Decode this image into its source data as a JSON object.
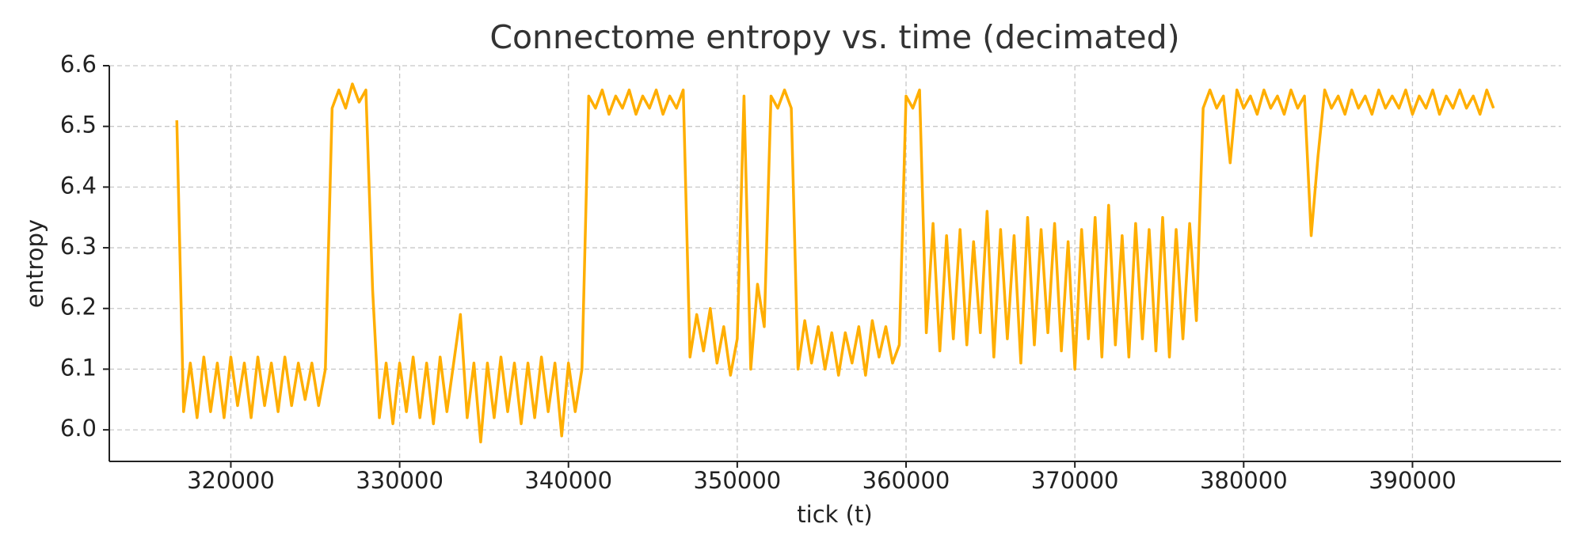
{
  "chart_data": {
    "type": "line",
    "title": "Connectome entropy vs. time (decimated)",
    "x_label": "tick (t)",
    "y_label": "entropy",
    "color": "#ffae00",
    "grid": true,
    "xlim": [
      312800,
      398800
    ],
    "ylim": [
      5.948,
      6.6
    ],
    "xticks": [
      320000,
      330000,
      340000,
      350000,
      360000,
      370000,
      380000,
      390000
    ],
    "yticks": [
      {
        "value": 6,
        "label": "6.0"
      },
      6.1,
      6.2,
      6.3,
      6.4,
      6.5,
      6.6
    ],
    "x": [
      316800,
      317200,
      317600,
      318000,
      318400,
      318800,
      319200,
      319600,
      320000,
      320400,
      320800,
      321200,
      321600,
      322000,
      322400,
      322800,
      323200,
      323600,
      324000,
      324400,
      324800,
      325200,
      325600,
      326000,
      326400,
      326800,
      327200,
      327600,
      328000,
      328400,
      328800,
      329200,
      329600,
      330000,
      330400,
      330800,
      331200,
      331600,
      332000,
      332400,
      332800,
      333200,
      333600,
      334000,
      334400,
      334800,
      335200,
      335600,
      336000,
      336400,
      336800,
      337200,
      337600,
      338000,
      338400,
      338800,
      339200,
      339600,
      340000,
      340400,
      340800,
      341200,
      341600,
      342000,
      342400,
      342800,
      343200,
      343600,
      344000,
      344400,
      344800,
      345200,
      345600,
      346000,
      346400,
      346800,
      347200,
      347600,
      348000,
      348400,
      348800,
      349200,
      349600,
      350000,
      350400,
      350800,
      351200,
      351600,
      352000,
      352400,
      352800,
      353200,
      353600,
      354000,
      354400,
      354800,
      355200,
      355600,
      356000,
      356400,
      356800,
      357200,
      357600,
      358000,
      358400,
      358800,
      359200,
      359600,
      360000,
      360400,
      360800,
      361200,
      361600,
      362000,
      362400,
      362800,
      363200,
      363600,
      364000,
      364400,
      364800,
      365200,
      365600,
      366000,
      366400,
      366800,
      367200,
      367600,
      368000,
      368400,
      368800,
      369200,
      369600,
      370000,
      370400,
      370800,
      371200,
      371600,
      372000,
      372400,
      372800,
      373200,
      373600,
      374000,
      374400,
      374800,
      375200,
      375600,
      376000,
      376400,
      376800,
      377200,
      377600,
      378000,
      378400,
      378800,
      379200,
      379600,
      380000,
      380400,
      380800,
      381200,
      381600,
      382000,
      382400,
      382800,
      383200,
      383600,
      384000,
      384400,
      384800,
      385200,
      385600,
      386000,
      386400,
      386800,
      387200,
      387600,
      388000,
      388400,
      388800,
      389200,
      389600,
      390000,
      390400,
      390800,
      391200,
      391600,
      392000,
      392400,
      392800,
      393200,
      393600,
      394000,
      394400,
      394800
    ],
    "values": [
      6.51,
      6.03,
      6.11,
      6.02,
      6.12,
      6.03,
      6.11,
      6.02,
      6.12,
      6.04,
      6.11,
      6.02,
      6.12,
      6.04,
      6.11,
      6.03,
      6.12,
      6.04,
      6.11,
      6.05,
      6.11,
      6.04,
      6.1,
      6.53,
      6.56,
      6.53,
      6.57,
      6.54,
      6.56,
      6.23,
      6.02,
      6.11,
      6.01,
      6.11,
      6.03,
      6.12,
      6.02,
      6.11,
      6.01,
      6.12,
      6.03,
      6.11,
      6.19,
      6.02,
      6.11,
      5.98,
      6.11,
      6.02,
      6.12,
      6.03,
      6.11,
      6.01,
      6.11,
      6.02,
      6.12,
      6.03,
      6.11,
      5.99,
      6.11,
      6.03,
      6.1,
      6.55,
      6.53,
      6.56,
      6.52,
      6.55,
      6.53,
      6.56,
      6.52,
      6.55,
      6.53,
      6.56,
      6.52,
      6.55,
      6.53,
      6.56,
      6.12,
      6.19,
      6.13,
      6.2,
      6.11,
      6.17,
      6.09,
      6.15,
      6.55,
      6.1,
      6.24,
      6.17,
      6.55,
      6.53,
      6.56,
      6.53,
      6.1,
      6.18,
      6.11,
      6.17,
      6.1,
      6.16,
      6.09,
      6.16,
      6.11,
      6.17,
      6.09,
      6.18,
      6.12,
      6.17,
      6.11,
      6.14,
      6.55,
      6.53,
      6.56,
      6.16,
      6.34,
      6.13,
      6.32,
      6.15,
      6.33,
      6.14,
      6.31,
      6.16,
      6.36,
      6.12,
      6.33,
      6.15,
      6.32,
      6.11,
      6.35,
      6.14,
      6.33,
      6.16,
      6.34,
      6.13,
      6.31,
      6.1,
      6.33,
      6.15,
      6.35,
      6.12,
      6.37,
      6.14,
      6.32,
      6.12,
      6.34,
      6.15,
      6.33,
      6.13,
      6.35,
      6.12,
      6.33,
      6.15,
      6.34,
      6.18,
      6.53,
      6.56,
      6.53,
      6.55,
      6.44,
      6.56,
      6.53,
      6.55,
      6.52,
      6.56,
      6.53,
      6.55,
      6.52,
      6.56,
      6.53,
      6.55,
      6.32,
      6.45,
      6.56,
      6.53,
      6.55,
      6.52,
      6.56,
      6.53,
      6.55,
      6.52,
      6.56,
      6.53,
      6.55,
      6.53,
      6.56,
      6.52,
      6.55,
      6.53,
      6.56,
      6.52,
      6.55,
      6.53,
      6.56,
      6.53,
      6.55,
      6.52,
      6.56,
      6.53
    ]
  }
}
